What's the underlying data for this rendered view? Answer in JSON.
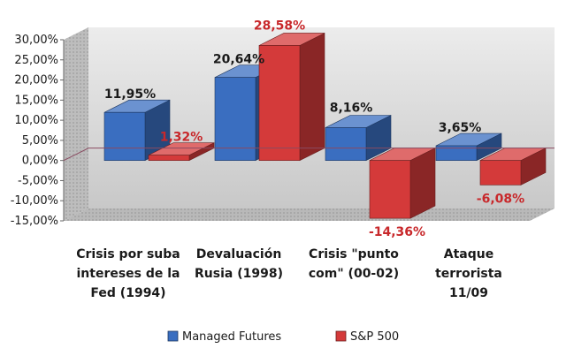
{
  "chart_data": {
    "type": "bar",
    "categories": [
      [
        "Crisis por suba",
        "intereses de la",
        "Fed (1994)"
      ],
      [
        "Devaluación",
        "Rusia (1998)"
      ],
      [
        "Crisis \"punto",
        "com\" (00-02)"
      ],
      [
        "Ataque",
        "terrorista",
        "11/09"
      ]
    ],
    "series": [
      {
        "name": "Managed Futures",
        "values": [
          11.95,
          20.64,
          8.16,
          3.65
        ],
        "labels": [
          "11,95%",
          "20,64%",
          "8,16%",
          "3,65%"
        ],
        "color": "#3a6ec0"
      },
      {
        "name": "S&P 500",
        "values": [
          1.32,
          28.58,
          -14.36,
          -6.08
        ],
        "labels": [
          "1,32%",
          "28,58%",
          "-14,36%",
          "-6,08%"
        ],
        "color": "#d43a3a"
      }
    ],
    "y_ticks": [
      "30,00%",
      "25,00%",
      "20,00%",
      "15,00%",
      "10,00%",
      "5,00%",
      "0,00%",
      "-5,00%",
      "-10,00%",
      "-15,00%"
    ],
    "ylim": [
      -15,
      30
    ],
    "legend_position": "bottom",
    "title": "",
    "xlabel": "",
    "ylabel": ""
  }
}
